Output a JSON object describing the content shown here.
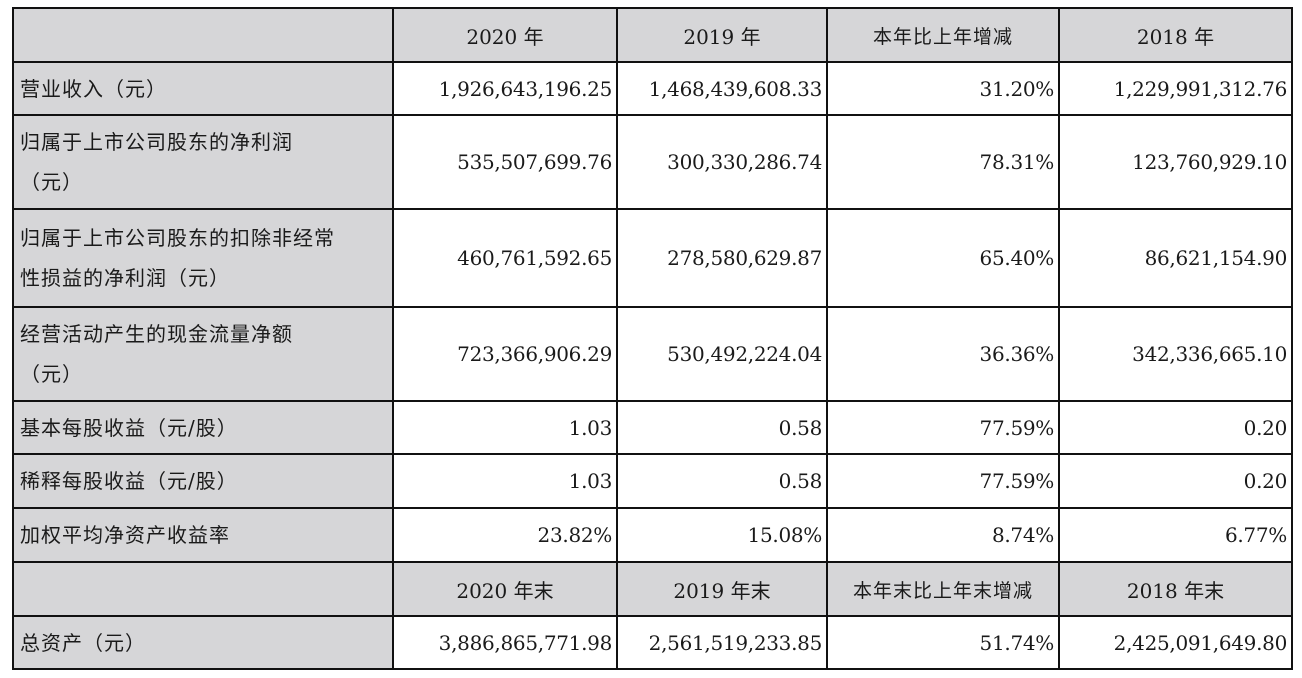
{
  "table": {
    "header": [
      "",
      "2020 年",
      "2019 年",
      "本年比上年增减",
      "2018 年"
    ],
    "rows": [
      {
        "label": "营业收入（元）",
        "values": [
          "1,926,643,196.25",
          "1,468,439,608.33",
          "31.20%",
          "1,229,991,312.76"
        ]
      },
      {
        "label_line1": "归属于上市公司股东的净利润",
        "label_line2": "（元）",
        "values": [
          "535,507,699.76",
          "300,330,286.74",
          "78.31%",
          "123,760,929.10"
        ]
      },
      {
        "label_line1": "归属于上市公司股东的扣除非经常",
        "label_line2": "性损益的净利润（元）",
        "values": [
          "460,761,592.65",
          "278,580,629.87",
          "65.40%",
          "86,621,154.90"
        ]
      },
      {
        "label_line1": "经营活动产生的现金流量净额",
        "label_line2": "（元）",
        "values": [
          "723,366,906.29",
          "530,492,224.04",
          "36.36%",
          "342,336,665.10"
        ]
      },
      {
        "label": "基本每股收益（元/股）",
        "values": [
          "1.03",
          "0.58",
          "77.59%",
          "0.20"
        ]
      },
      {
        "label": "稀释每股收益（元/股）",
        "values": [
          "1.03",
          "0.58",
          "77.59%",
          "0.20"
        ]
      },
      {
        "label": "加权平均净资产收益率",
        "values": [
          "23.82%",
          "15.08%",
          "8.74%",
          "6.77%"
        ]
      }
    ],
    "header2": [
      "",
      "2020 年末",
      "2019 年末",
      "本年末比上年末增减",
      "2018 年末"
    ],
    "rows2": [
      {
        "label": "总资产（元）",
        "values": [
          "3,886,865,771.98",
          "2,561,519,233.85",
          "51.74%",
          "2,425,091,649.80"
        ]
      }
    ]
  },
  "colors": {
    "header_bg": "#d6d6d8",
    "border": "#111111",
    "cell_bg": "#ffffff"
  }
}
